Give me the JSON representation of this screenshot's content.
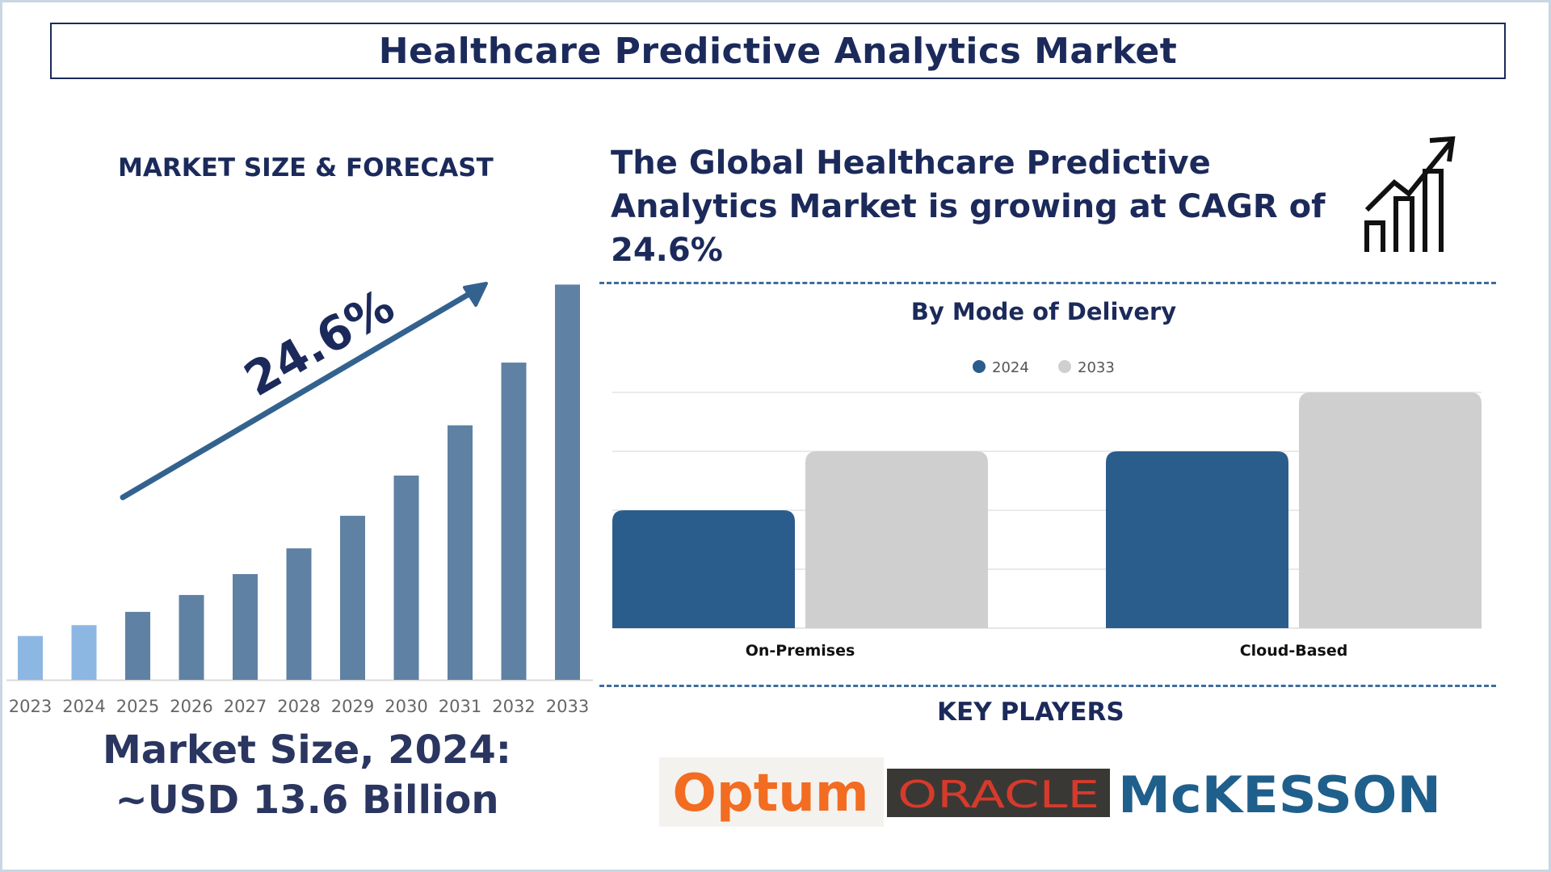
{
  "title": "Healthcare Predictive Analytics Market",
  "section_label": "MARKET SIZE & FORECAST",
  "headline": "The Global Healthcare Predictive Analytics Market is growing at CAGR of 24.6%",
  "cagr_label": "24.6%",
  "market_size": {
    "line1": "Market Size, 2024:",
    "line2": "~USD 13.6 Billion"
  },
  "key_players_label": "KEY PLAYERS",
  "key_players": [
    "Optum",
    "ORACLE",
    "McKESSON"
  ],
  "colors": {
    "navy": "#1b2a5a",
    "light_bar": "#8db7e3",
    "forecast_bar": "#5f81a3",
    "arrow": "#33628f",
    "bar_2024": "#2a5d8c",
    "bar_2033": "#cfcfcf",
    "optum": "#f26c21",
    "oracle_bg": "#3a3835",
    "oracle_text": "#d63a2b",
    "mckesson": "#1f5f8c"
  },
  "chart_data": [
    {
      "type": "bar",
      "title": "MARKET SIZE & FORECAST",
      "categories": [
        "2023",
        "2024",
        "2025",
        "2026",
        "2027",
        "2028",
        "2029",
        "2030",
        "2031",
        "2032",
        "2033"
      ],
      "values": [
        10.9,
        13.6,
        16.9,
        21.1,
        26.3,
        32.7,
        40.8,
        50.8,
        63.3,
        78.9,
        98.3
      ],
      "actual_count": 2,
      "annotation": "24.6%",
      "ylim": [
        0,
        100
      ]
    },
    {
      "type": "bar",
      "title": "By Mode of Delivery",
      "categories": [
        "On-Premises",
        "Cloud-Based"
      ],
      "series": [
        {
          "name": "2024",
          "values": [
            2,
            3
          ]
        },
        {
          "name": "2033",
          "values": [
            3,
            4
          ]
        }
      ],
      "ylim": [
        0,
        4
      ],
      "gridlines": true,
      "legend": "top"
    }
  ]
}
